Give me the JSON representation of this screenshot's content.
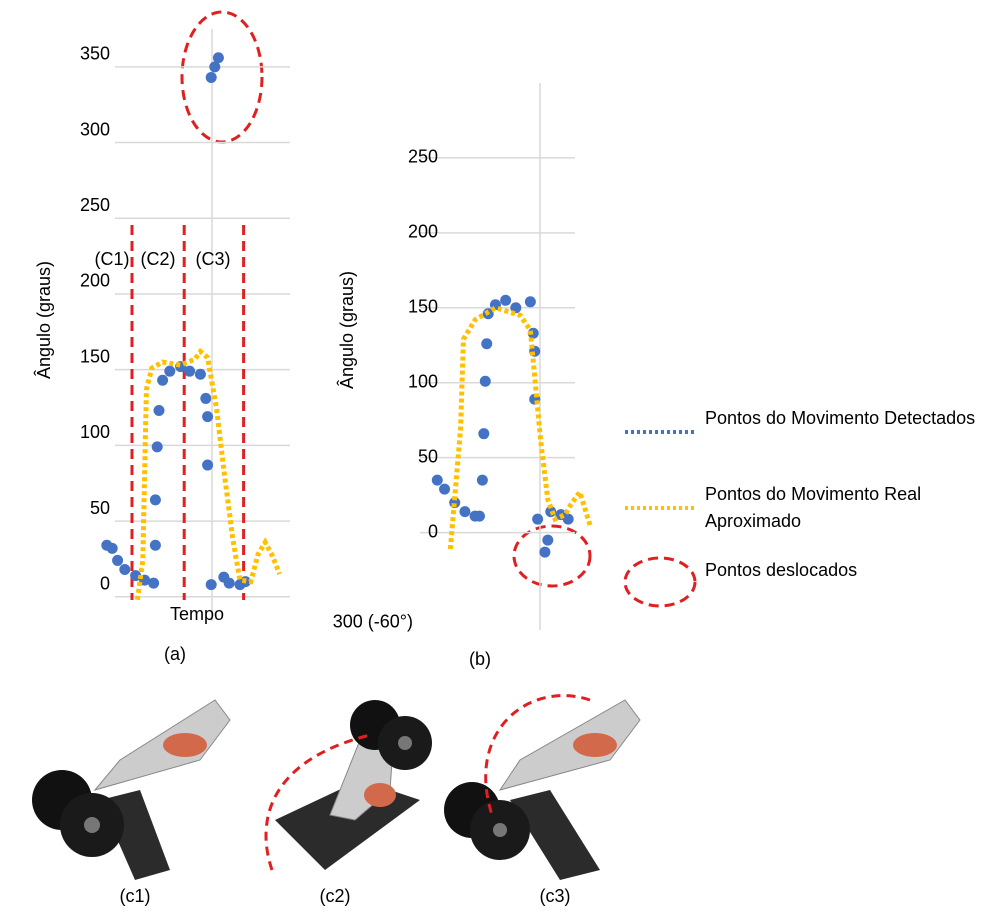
{
  "chart_data": [
    {
      "type": "scatter",
      "caption": "(a)",
      "y_label": "Ângulo (graus)",
      "x_label": "Tempo",
      "xlim": [
        0,
        100
      ],
      "ylim": [
        -16,
        375
      ],
      "yticks": [
        0,
        50,
        100,
        150,
        200,
        250,
        300,
        350
      ],
      "grid": true,
      "regions": [
        "(C1)",
        "(C2)",
        "(C3)"
      ],
      "dividers": [
        15,
        44,
        77
      ],
      "series": [
        {
          "name": "Pontos do Movimento Detectados",
          "type": "scatter",
          "color": "#4472c4",
          "x": [
            1,
            4,
            7,
            11,
            17,
            22,
            27,
            28,
            28,
            29,
            30,
            32,
            36,
            42,
            47,
            53,
            56,
            57,
            57,
            59,
            59,
            61,
            63,
            66,
            69,
            75,
            78
          ],
          "values": [
            34,
            32,
            24,
            18,
            14,
            11,
            9,
            34,
            64,
            99,
            123,
            143,
            149,
            152,
            149,
            147,
            131,
            119,
            87,
            8,
            343,
            350,
            356,
            13,
            9,
            8,
            10
          ]
        },
        {
          "name": "Pontos do Movimento Real Aproximado",
          "type": "line",
          "color": "#ffc000",
          "x": [
            18,
            21,
            23,
            26,
            32,
            42,
            50,
            53,
            57,
            62,
            66,
            71,
            75,
            81,
            85,
            89,
            93,
            97
          ],
          "values": [
            -2,
            24,
            137,
            151,
            155,
            153,
            157,
            162,
            158,
            124,
            84,
            38,
            11,
            10,
            28,
            36,
            27,
            15
          ]
        }
      ]
    },
    {
      "type": "scatter",
      "caption": "(b)",
      "y_label": "Ângulo (graus)",
      "xlim": [
        0,
        110
      ],
      "ylim": [
        -65,
        300
      ],
      "yticks": [
        {
          "value": -60,
          "label": "300 (-60°)"
        },
        0,
        50,
        100,
        150,
        200,
        250
      ],
      "grid": true,
      "series": [
        {
          "type": "scatter",
          "color": "#4472c4",
          "x": [
            5,
            10,
            17,
            24,
            31,
            34,
            36,
            37,
            38,
            39,
            40,
            45,
            52,
            59,
            69,
            71,
            72,
            72,
            74,
            79,
            81,
            83,
            90,
            95
          ],
          "values": [
            35,
            29,
            20,
            14,
            11,
            11,
            35,
            66,
            101,
            126,
            146,
            152,
            155,
            150,
            154,
            133,
            121,
            89,
            9,
            -13,
            -5,
            14,
            12,
            9
          ]
        },
        {
          "type": "line",
          "color": "#ffc000",
          "x": [
            14,
            21,
            23,
            31,
            45,
            62,
            69,
            76,
            81,
            86,
            93,
            97,
            103,
            110
          ],
          "values": [
            -11,
            69,
            129,
            142,
            150,
            145,
            135,
            62,
            22,
            9,
            12,
            19,
            27,
            5
          ]
        }
      ]
    }
  ],
  "legend_outlier_label": "Pontos deslocados",
  "images": [
    {
      "caption": "(c1)"
    },
    {
      "caption": "(c2)"
    },
    {
      "caption": "(c3)"
    }
  ]
}
